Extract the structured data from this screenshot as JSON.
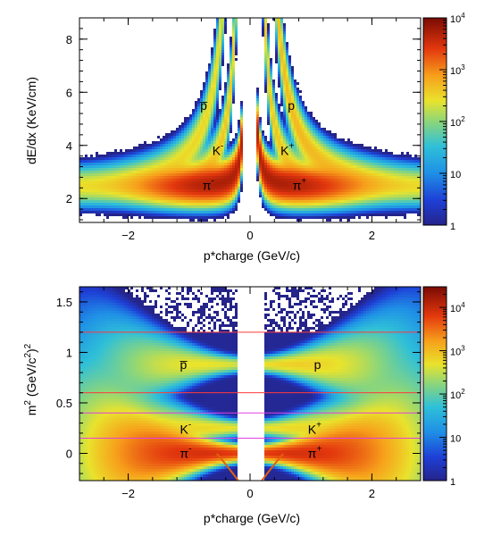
{
  "chart_data": [
    {
      "type": "heatmap",
      "panel": "top",
      "xlabel": "p*charge (GeV/c)",
      "ylabel": "dE/dx (KeV/cm)",
      "xlim": [
        -2.8,
        2.8
      ],
      "ylim": [
        1.1,
        8.8
      ],
      "xticks": [
        -2,
        0,
        2
      ],
      "xtick_labels": [
        "−2",
        "0",
        "2"
      ],
      "yticks": [
        2,
        4,
        6,
        8
      ],
      "ytick_labels": [
        "2",
        "4",
        "6",
        "8"
      ],
      "colorbar": {
        "scale": "log",
        "range": [
          1,
          10000
        ],
        "ticks": [
          1,
          10,
          100,
          1000,
          10000
        ],
        "tick_labels": [
          {
            "base": "1",
            "exp": ""
          },
          {
            "base": "10",
            "exp": ""
          },
          {
            "base": "10",
            "exp": "2"
          },
          {
            "base": "10",
            "exp": "3"
          },
          {
            "base": "10",
            "exp": "4"
          }
        ]
      },
      "bands": [
        {
          "label": {
            "base": "π",
            "sup": "-"
          },
          "side": -1,
          "mass": 0.14,
          "amp": 1.55,
          "base": 2.45,
          "peak_density": 5000
        },
        {
          "label": {
            "base": "π",
            "sup": "+"
          },
          "side": 1,
          "mass": 0.14,
          "amp": 1.55,
          "base": 2.45,
          "peak_density": 5000
        },
        {
          "label": {
            "base": "K",
            "sup": "-"
          },
          "side": -1,
          "mass": 0.494,
          "amp": 1.55,
          "base": 2.45,
          "peak_density": 400
        },
        {
          "label": {
            "base": "K",
            "sup": "+"
          },
          "side": 1,
          "mass": 0.494,
          "amp": 1.55,
          "base": 2.45,
          "peak_density": 400
        },
        {
          "label": {
            "base": "p̅",
            "sup": ""
          },
          "side": -1,
          "mass": 0.938,
          "amp": 1.55,
          "base": 2.45,
          "peak_density": 300
        },
        {
          "label": {
            "base": "p",
            "sup": ""
          },
          "side": 1,
          "mass": 0.938,
          "amp": 1.55,
          "base": 2.45,
          "peak_density": 500
        }
      ],
      "label_positions": [
        {
          "text_base": "π",
          "text_sup": "-",
          "x": -0.78,
          "y": 2.5
        },
        {
          "text_base": "π",
          "text_sup": "+",
          "x": 0.7,
          "y": 2.5
        },
        {
          "text_base": "K",
          "text_sup": "-",
          "x": -0.62,
          "y": 3.8
        },
        {
          "text_base": "K",
          "text_sup": "+",
          "x": 0.5,
          "y": 3.8
        },
        {
          "text_base": "p̅",
          "text_sup": "",
          "x": -0.82,
          "y": 5.5
        },
        {
          "text_base": "p",
          "text_sup": "",
          "x": 0.62,
          "y": 5.5
        }
      ]
    },
    {
      "type": "heatmap",
      "panel": "bottom",
      "xlabel": "p*charge (GeV/c)",
      "ylabel": {
        "parts": [
          "m",
          "2",
          " (GeV/c",
          "2",
          ")",
          "2"
        ]
      },
      "xlim": [
        -2.8,
        2.8
      ],
      "ylim": [
        -0.27,
        1.65
      ],
      "xticks": [
        -2,
        0,
        2
      ],
      "xtick_labels": [
        "−2",
        "0",
        "2"
      ],
      "yticks": [
        0,
        0.5,
        1,
        1.5
      ],
      "ytick_labels": [
        "0",
        "0.5",
        "1",
        "1.5"
      ],
      "colorbar": {
        "scale": "log",
        "range": [
          1,
          30000
        ],
        "ticks": [
          1,
          10,
          100,
          1000,
          10000
        ],
        "tick_labels": [
          {
            "base": "1",
            "exp": ""
          },
          {
            "base": "10",
            "exp": ""
          },
          {
            "base": "10",
            "exp": "2"
          },
          {
            "base": "10",
            "exp": "3"
          },
          {
            "base": "10",
            "exp": "4"
          }
        ]
      },
      "bands": [
        {
          "label": {
            "base": "π",
            "sup": "-"
          },
          "m2": 0.0,
          "side": -1,
          "peak_density": 8000
        },
        {
          "label": {
            "base": "π",
            "sup": "+"
          },
          "m2": 0.0,
          "side": 1,
          "peak_density": 8000
        },
        {
          "label": {
            "base": "K",
            "sup": "-"
          },
          "m2": 0.25,
          "side": -1,
          "peak_density": 600
        },
        {
          "label": {
            "base": "K",
            "sup": "+"
          },
          "m2": 0.25,
          "side": 1,
          "peak_density": 600
        },
        {
          "label": {
            "base": "p̅",
            "sup": ""
          },
          "m2": 0.88,
          "side": -1,
          "peak_density": 500
        },
        {
          "label": {
            "base": "p",
            "sup": ""
          },
          "m2": 0.88,
          "side": 1,
          "peak_density": 700
        }
      ],
      "cut_lines": [
        {
          "y": 1.2,
          "color": "#ff3b3b"
        },
        {
          "y": 0.6,
          "color": "#ff3b3b"
        },
        {
          "y": 0.4,
          "color": "#e040e0"
        },
        {
          "y": 0.15,
          "color": "#e040e0"
        }
      ],
      "label_positions": [
        {
          "text_base": "π",
          "text_sup": "-",
          "x": -1.15,
          "y": 0.0
        },
        {
          "text_base": "π",
          "text_sup": "+",
          "x": 0.95,
          "y": 0.0
        },
        {
          "text_base": "K",
          "text_sup": "-",
          "x": -1.15,
          "y": 0.24
        },
        {
          "text_base": "K",
          "text_sup": "+",
          "x": 0.95,
          "y": 0.24
        },
        {
          "text_base": "p̅",
          "text_sup": "",
          "x": -1.15,
          "y": 0.88
        },
        {
          "text_base": "p",
          "text_sup": "",
          "x": 1.05,
          "y": 0.88
        }
      ]
    }
  ]
}
